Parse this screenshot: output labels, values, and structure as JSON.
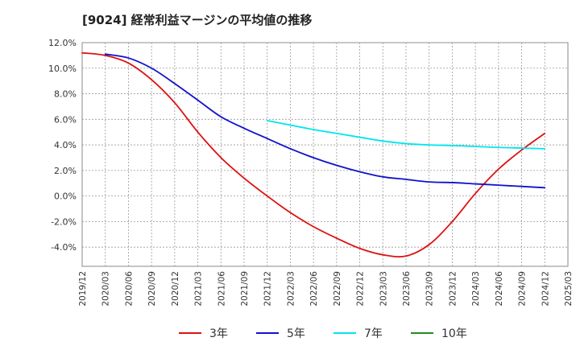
{
  "chart_data": {
    "type": "line",
    "title": "[9024]  経常利益マージンの平均値の推移",
    "xlabel": "",
    "ylabel": "",
    "ylim": [
      -5.5,
      12.0
    ],
    "yticks": [
      12.0,
      10.0,
      8.0,
      6.0,
      4.0,
      2.0,
      0.0,
      -2.0,
      -4.0
    ],
    "ytick_labels": [
      "12.0%",
      "10.0%",
      "8.0%",
      "6.0%",
      "4.0%",
      "2.0%",
      "0.0%",
      "-2.0%",
      "-4.0%"
    ],
    "x_categories": [
      "2019/12",
      "2020/03",
      "2020/06",
      "2020/09",
      "2020/12",
      "2021/03",
      "2021/06",
      "2021/09",
      "2021/12",
      "2022/03",
      "2022/06",
      "2022/09",
      "2022/12",
      "2023/03",
      "2023/06",
      "2023/09",
      "2023/12",
      "2024/03",
      "2024/06",
      "2024/09",
      "2024/12",
      "2025/03"
    ],
    "grid": true,
    "legend_position": "bottom",
    "series": [
      {
        "name": "3年",
        "color": "#dd1111",
        "points": [
          [
            "2019/12",
            11.2
          ],
          [
            "2020/03",
            11.0
          ],
          [
            "2020/06",
            10.4
          ],
          [
            "2020/09",
            9.1
          ],
          [
            "2020/12",
            7.3
          ],
          [
            "2021/03",
            5.0
          ],
          [
            "2021/06",
            3.0
          ],
          [
            "2021/09",
            1.4
          ],
          [
            "2021/12",
            0.0
          ],
          [
            "2022/03",
            -1.3
          ],
          [
            "2022/06",
            -2.4
          ],
          [
            "2022/09",
            -3.3
          ],
          [
            "2022/12",
            -4.1
          ],
          [
            "2023/03",
            -4.6
          ],
          [
            "2023/06",
            -4.7
          ],
          [
            "2023/09",
            -3.8
          ],
          [
            "2023/12",
            -2.0
          ],
          [
            "2024/03",
            0.2
          ],
          [
            "2024/06",
            2.1
          ],
          [
            "2024/09",
            3.6
          ],
          [
            "2024/12",
            4.9
          ]
        ]
      },
      {
        "name": "5年",
        "color": "#1111cc",
        "points": [
          [
            "2020/03",
            11.1
          ],
          [
            "2020/06",
            10.8
          ],
          [
            "2020/09",
            10.0
          ],
          [
            "2020/12",
            8.8
          ],
          [
            "2021/03",
            7.5
          ],
          [
            "2021/06",
            6.2
          ],
          [
            "2021/09",
            5.3
          ],
          [
            "2021/12",
            4.5
          ],
          [
            "2022/03",
            3.7
          ],
          [
            "2022/06",
            3.0
          ],
          [
            "2022/09",
            2.4
          ],
          [
            "2022/12",
            1.9
          ],
          [
            "2023/03",
            1.5
          ],
          [
            "2023/06",
            1.3
          ],
          [
            "2023/09",
            1.1
          ],
          [
            "2023/12",
            1.05
          ],
          [
            "2024/03",
            0.95
          ],
          [
            "2024/06",
            0.85
          ],
          [
            "2024/09",
            0.75
          ],
          [
            "2024/12",
            0.65
          ]
        ]
      },
      {
        "name": "7年",
        "color": "#00e5ee",
        "points": [
          [
            "2021/12",
            5.9
          ],
          [
            "2022/03",
            5.55
          ],
          [
            "2022/06",
            5.2
          ],
          [
            "2022/09",
            4.9
          ],
          [
            "2022/12",
            4.6
          ],
          [
            "2023/03",
            4.3
          ],
          [
            "2023/06",
            4.1
          ],
          [
            "2023/09",
            4.0
          ],
          [
            "2023/12",
            3.95
          ],
          [
            "2024/03",
            3.88
          ],
          [
            "2024/06",
            3.8
          ],
          [
            "2024/09",
            3.75
          ],
          [
            "2024/12",
            3.7
          ]
        ]
      },
      {
        "name": "10年",
        "color": "#228b22",
        "points": []
      }
    ]
  }
}
